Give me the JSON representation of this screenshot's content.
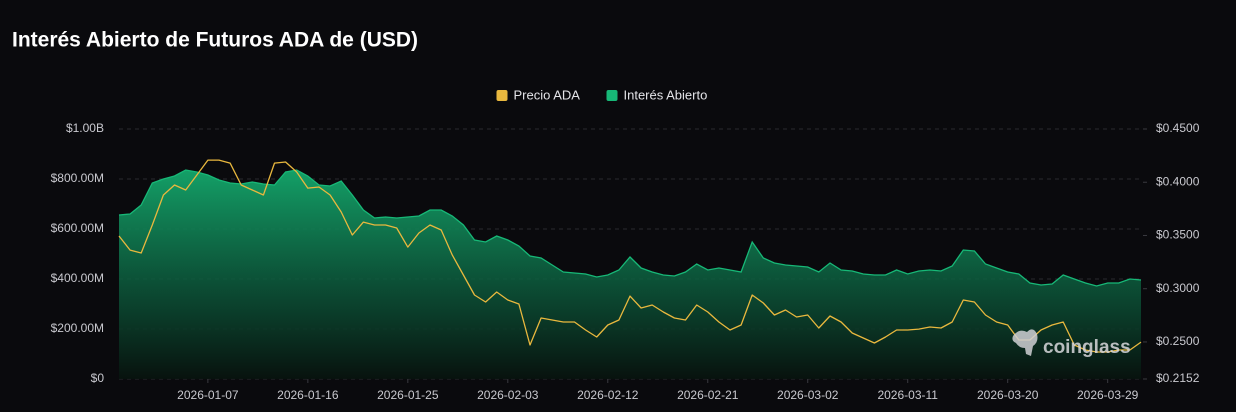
{
  "chart_data": {
    "type": "line",
    "title": "Interés Abierto de Futuros ADA de (USD)",
    "watermark": "coinglass",
    "x": [
      "2025-12-30",
      "2025-12-31",
      "2026-01-01",
      "2026-01-02",
      "2026-01-03",
      "2026-01-04",
      "2026-01-05",
      "2026-01-06",
      "2026-01-07",
      "2026-01-08",
      "2026-01-09",
      "2026-01-10",
      "2026-01-11",
      "2026-01-12",
      "2026-01-13",
      "2026-01-14",
      "2026-01-15",
      "2026-01-16",
      "2026-01-17",
      "2026-01-18",
      "2026-01-19",
      "2026-01-20",
      "2026-01-21",
      "2026-01-22",
      "2026-01-23",
      "2026-01-24",
      "2026-01-25",
      "2026-01-26",
      "2026-01-27",
      "2026-01-28",
      "2026-01-29",
      "2026-01-30",
      "2026-01-31",
      "2026-02-01",
      "2026-02-02",
      "2026-02-03",
      "2026-02-04",
      "2026-02-05",
      "2026-02-06",
      "2026-02-07",
      "2026-02-08",
      "2026-02-09",
      "2026-02-10",
      "2026-02-11",
      "2026-02-12",
      "2026-02-13",
      "2026-02-14",
      "2026-02-15",
      "2026-02-16",
      "2026-02-17",
      "2026-02-18",
      "2026-02-19",
      "2026-02-20",
      "2026-02-21",
      "2026-02-22",
      "2026-02-23",
      "2026-02-24",
      "2026-02-25",
      "2026-02-26",
      "2026-02-27",
      "2026-02-28",
      "2026-03-01",
      "2026-03-02",
      "2026-03-03",
      "2026-03-04",
      "2026-03-05",
      "2026-03-06",
      "2026-03-07",
      "2026-03-08",
      "2026-03-09",
      "2026-03-10",
      "2026-03-11",
      "2026-03-12",
      "2026-03-13",
      "2026-03-14",
      "2026-03-15",
      "2026-03-16",
      "2026-03-17",
      "2026-03-18",
      "2026-03-19",
      "2026-03-20",
      "2026-03-21",
      "2026-03-22",
      "2026-03-23",
      "2026-03-24",
      "2026-03-25",
      "2026-03-26",
      "2026-03-27",
      "2026-03-28",
      "2026-03-29",
      "2026-03-30",
      "2026-03-31",
      "2026-04-01"
    ],
    "xlim": [
      "2025-12-30",
      "2026-04-01"
    ],
    "xticks": [
      "2026-01-07",
      "2026-01-16",
      "2026-01-25",
      "2026-02-03",
      "2026-02-12",
      "2026-02-21",
      "2026-03-02",
      "2026-03-11",
      "2026-03-20",
      "2026-03-29"
    ],
    "ylim": [
      0,
      1000000000
    ],
    "yticks": [
      {
        "value": 0,
        "label": "$0"
      },
      {
        "value": 200000000,
        "label": "$200.00M"
      },
      {
        "value": 400000000,
        "label": "$400.00M"
      },
      {
        "value": 600000000,
        "label": "$600.00M"
      },
      {
        "value": 800000000,
        "label": "$800.00M"
      },
      {
        "value": 1000000000,
        "label": "$1.00B"
      }
    ],
    "y2lim": [
      0.2152,
      0.45
    ],
    "y2ticks": [
      {
        "value": 0.2152,
        "label": "$0.2152"
      },
      {
        "value": 0.25,
        "label": "$0.2500"
      },
      {
        "value": 0.3,
        "label": "$0.3000"
      },
      {
        "value": 0.35,
        "label": "$0.3500"
      },
      {
        "value": 0.4,
        "label": "$0.4000"
      },
      {
        "value": 0.45,
        "label": "$0.4500"
      }
    ],
    "grid": true,
    "legend": "top",
    "series": [
      {
        "name": "Precio ADA",
        "color": "#e9b83e",
        "type": "line",
        "axis": "y2",
        "values": [
          0.3495,
          0.3363,
          0.3335,
          0.3598,
          0.388,
          0.3974,
          0.3927,
          0.4067,
          0.4208,
          0.4208,
          0.418,
          0.3974,
          0.3927,
          0.388,
          0.418,
          0.419,
          0.4096,
          0.3945,
          0.3955,
          0.388,
          0.372,
          0.3504,
          0.3626,
          0.3598,
          0.3598,
          0.357,
          0.3391,
          0.3523,
          0.3598,
          0.3551,
          0.3316,
          0.3129,
          0.2941,
          0.2875,
          0.2969,
          0.2894,
          0.2856,
          0.2471,
          0.2725,
          0.2706,
          0.2687,
          0.2687,
          0.2612,
          0.2546,
          0.2659,
          0.2706,
          0.2931,
          0.2819,
          0.2847,
          0.2781,
          0.2725,
          0.2706,
          0.2847,
          0.2781,
          0.2687,
          0.2612,
          0.2659,
          0.2941,
          0.2866,
          0.2753,
          0.28,
          0.2734,
          0.2753,
          0.2631,
          0.2744,
          0.2687,
          0.2584,
          0.2537,
          0.249,
          0.2546,
          0.2612,
          0.2612,
          0.2621,
          0.264,
          0.2631,
          0.2687,
          0.2894,
          0.2875,
          0.2753,
          0.2687,
          0.2659,
          0.2518,
          0.2518,
          0.2612,
          0.2659,
          0.2687,
          0.2471,
          0.2424,
          0.2406,
          0.2406,
          0.2424,
          0.2424,
          0.2499
        ]
      },
      {
        "name": "Interés Abierto",
        "color": "#17b877",
        "type": "area",
        "values": [
          656000000,
          660000000,
          696000000,
          784000000,
          800000000,
          812000000,
          836000000,
          828000000,
          816000000,
          796000000,
          784000000,
          780000000,
          788000000,
          780000000,
          776000000,
          828000000,
          836000000,
          812000000,
          776000000,
          772000000,
          792000000,
          736000000,
          676000000,
          644000000,
          648000000,
          644000000,
          648000000,
          652000000,
          676000000,
          676000000,
          652000000,
          616000000,
          556000000,
          548000000,
          572000000,
          556000000,
          532000000,
          492000000,
          484000000,
          456000000,
          428000000,
          424000000,
          420000000,
          408000000,
          416000000,
          436000000,
          488000000,
          444000000,
          428000000,
          416000000,
          412000000,
          428000000,
          460000000,
          436000000,
          444000000,
          436000000,
          428000000,
          548000000,
          484000000,
          464000000,
          456000000,
          452000000,
          448000000,
          428000000,
          464000000,
          436000000,
          432000000,
          420000000,
          416000000,
          416000000,
          436000000,
          420000000,
          432000000,
          436000000,
          432000000,
          452000000,
          516000000,
          512000000,
          460000000,
          444000000,
          428000000,
          420000000,
          384000000,
          376000000,
          380000000,
          416000000,
          400000000,
          384000000,
          372000000,
          384000000,
          384000000,
          400000000,
          396000000
        ]
      }
    ]
  }
}
